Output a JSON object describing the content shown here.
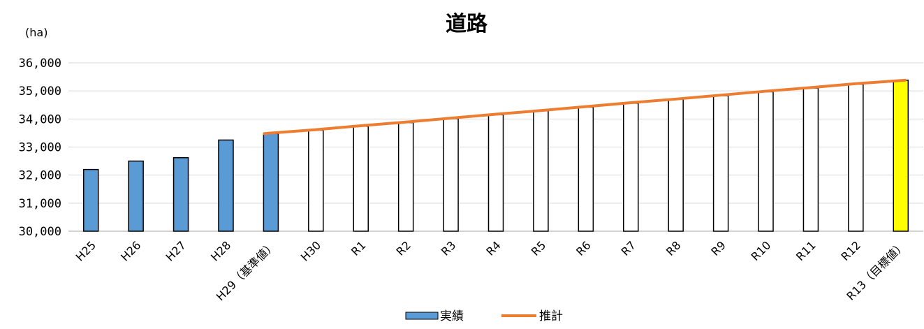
{
  "chart_data": {
    "type": "bar",
    "title": "道路",
    "ylabel": "(ha)",
    "xlabel": "",
    "ylim": [
      30000,
      36000
    ],
    "yticks": [
      30000,
      31000,
      32000,
      33000,
      34000,
      35000,
      36000
    ],
    "ytick_labels": [
      "30,000",
      "31,000",
      "32,000",
      "33,000",
      "34,000",
      "35,000",
      "36,000"
    ],
    "grid": true,
    "legend_position": "bottom",
    "categories": [
      "H25",
      "H26",
      "H27",
      "H28",
      "H29（基準値）",
      "H30",
      "R1",
      "R2",
      "R3",
      "R4",
      "R5",
      "R6",
      "R7",
      "R8",
      "R9",
      "R10",
      "R11",
      "R12",
      "R13（目標値）"
    ],
    "series": [
      {
        "name": "実績",
        "kind": "bar",
        "color": "#5b9bd5",
        "values": [
          32200,
          32500,
          32620,
          33250,
          33480,
          null,
          null,
          null,
          null,
          null,
          null,
          null,
          null,
          null,
          null,
          null,
          null,
          null,
          null
        ]
      },
      {
        "name": "",
        "kind": "bar",
        "color": "#ffffff",
        "values": [
          null,
          null,
          null,
          null,
          null,
          33600,
          33740,
          33870,
          34010,
          34150,
          34290,
          34420,
          34560,
          34700,
          34830,
          34970,
          35100,
          35240,
          null
        ]
      },
      {
        "name": "",
        "kind": "bar",
        "color": "#ffff00",
        "values": [
          null,
          null,
          null,
          null,
          null,
          null,
          null,
          null,
          null,
          null,
          null,
          null,
          null,
          null,
          null,
          null,
          null,
          null,
          35380
        ]
      },
      {
        "name": "推計",
        "kind": "line",
        "color": "#ed7d31",
        "values": [
          null,
          null,
          null,
          null,
          33480,
          33620,
          33760,
          33890,
          34030,
          34170,
          34300,
          34440,
          34580,
          34710,
          34850,
          34990,
          35120,
          35260,
          35380
        ]
      }
    ]
  }
}
